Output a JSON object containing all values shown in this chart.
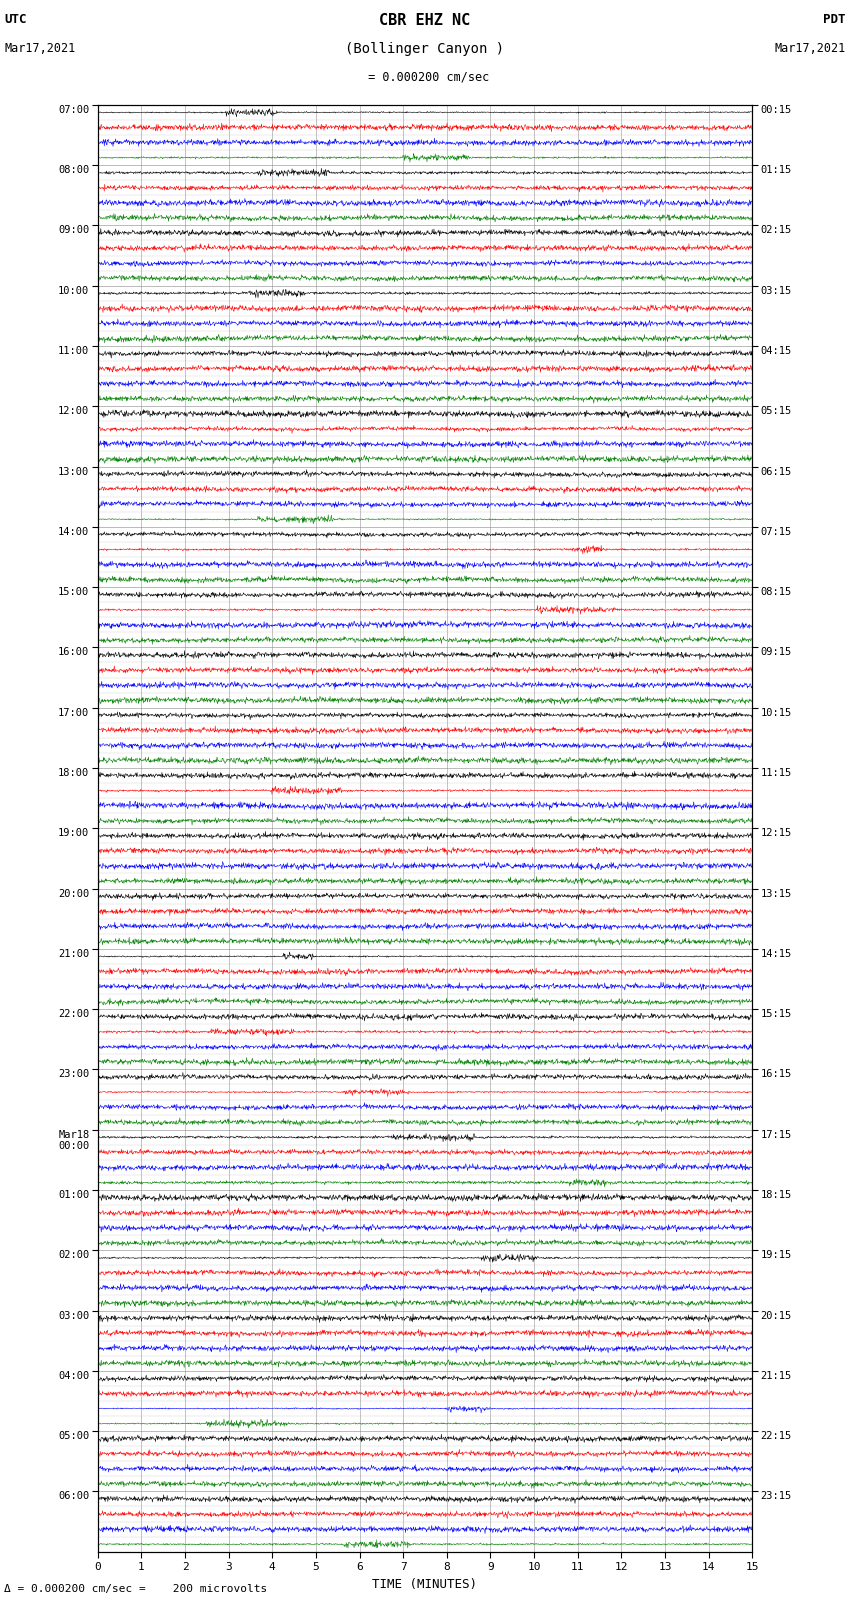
{
  "title_line1": "CBR EHZ NC",
  "title_line2": "(Bollinger Canyon )",
  "scale_label": " = 0.000200 cm/sec",
  "utc_label": "UTC",
  "utc_date": "Mar17,2021",
  "pdt_label": "PDT",
  "pdt_date": "Mar17,2021",
  "xlabel": "TIME (MINUTES)",
  "bottom_note": "= 0.000200 cm/sec =    200 microvolts",
  "left_times_labeled": [
    "07:00",
    "08:00",
    "09:00",
    "10:00",
    "11:00",
    "12:00",
    "13:00",
    "14:00",
    "15:00",
    "16:00",
    "17:00",
    "18:00",
    "19:00",
    "20:00",
    "21:00",
    "22:00",
    "23:00",
    "Mar18\n00:00",
    "01:00",
    "02:00",
    "03:00",
    "04:00",
    "05:00",
    "06:00"
  ],
  "right_times_labeled": [
    "00:15",
    "01:15",
    "02:15",
    "03:15",
    "04:15",
    "05:15",
    "06:15",
    "07:15",
    "08:15",
    "09:15",
    "10:15",
    "11:15",
    "12:15",
    "13:15",
    "14:15",
    "15:15",
    "16:15",
    "17:15",
    "18:15",
    "19:15",
    "20:15",
    "21:15",
    "22:15",
    "23:15"
  ],
  "num_hour_groups": 24,
  "traces_per_group": 4,
  "trace_colors": [
    "black",
    "red",
    "blue",
    "green"
  ],
  "background_color": "white",
  "grid_color": "#888888",
  "xmin": 0,
  "xmax": 15,
  "xticks": [
    0,
    1,
    2,
    3,
    4,
    5,
    6,
    7,
    8,
    9,
    10,
    11,
    12,
    13,
    14,
    15
  ],
  "fig_width": 8.5,
  "fig_height": 16.13,
  "dpi": 100
}
